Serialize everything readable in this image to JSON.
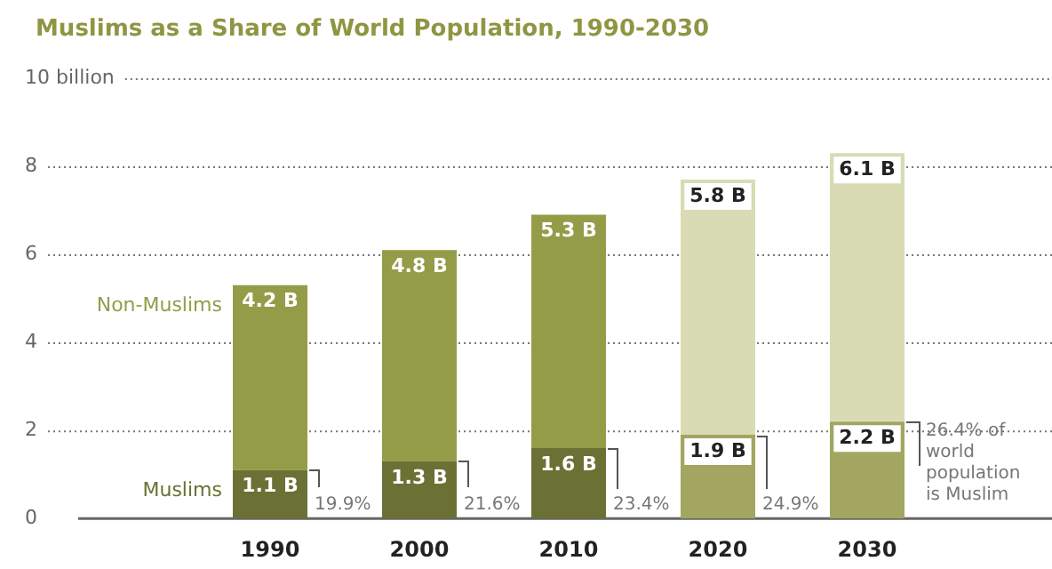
{
  "chart_data": {
    "type": "bar",
    "title": "Muslims as a Share of World Population, 1990-2030",
    "categories": [
      "1990",
      "2000",
      "2010",
      "2020",
      "2030"
    ],
    "stacked": true,
    "series": [
      {
        "name": "Muslims",
        "color": "#6b7134",
        "colors": [
          "#6b7134",
          "#6b7134",
          "#6b7134",
          "#a2a660",
          "#a2a660"
        ],
        "values": [
          1.1,
          1.3,
          1.6,
          1.9,
          2.2
        ],
        "value_labels": [
          "1.1 B",
          "1.3 B",
          "1.6 B",
          "1.9 B",
          "2.2 B"
        ]
      },
      {
        "name": "Non-Muslims",
        "color": "#959c48",
        "colors": [
          "#959c48",
          "#959c48",
          "#959c48",
          "#d9dbb4",
          "#d9dbb4"
        ],
        "values": [
          4.2,
          4.8,
          5.3,
          5.8,
          6.1
        ],
        "value_labels": [
          "4.2 B",
          "4.8 B",
          "5.3 B",
          "5.8 B",
          "6.1 B"
        ]
      }
    ],
    "ylim": [
      0,
      10
    ],
    "yticks": [
      0,
      2,
      4,
      6,
      8,
      {
        "value": 10,
        "label": "10 billion"
      }
    ],
    "grid": "y",
    "annotations": [
      "19.9%",
      "21.6%",
      "23.4%",
      "24.9%",
      "26.4% of world population is Muslim"
    ]
  }
}
